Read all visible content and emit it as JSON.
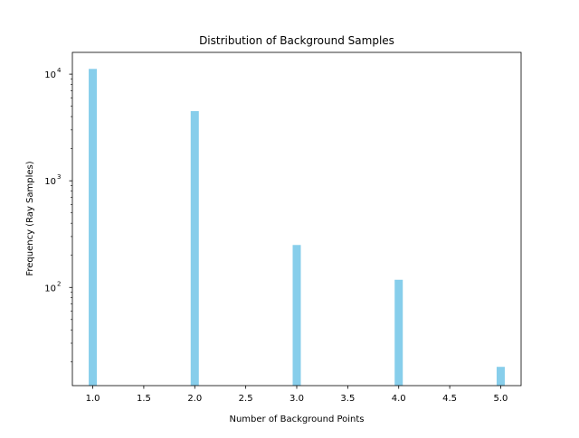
{
  "chart_data": {
    "type": "bar",
    "title": "Distribution of Background Samples",
    "xlabel": "Number of Background Points",
    "ylabel": "Frequency (Ray Samples)",
    "x": [
      1.0,
      2.0,
      3.0,
      4.0,
      5.0
    ],
    "values": [
      11200,
      4500,
      250,
      118,
      18
    ],
    "xlim": [
      0.8,
      5.2
    ],
    "ylim": [
      12,
      16000
    ],
    "yscale": "log",
    "xticks": [
      "1.0",
      "1.5",
      "2.0",
      "2.5",
      "3.0",
      "3.5",
      "4.0",
      "4.5",
      "5.0"
    ],
    "yticks": [
      {
        "value": 10000,
        "base": "10",
        "exp": "4"
      },
      {
        "value": 1000,
        "base": "10",
        "exp": "3"
      },
      {
        "value": 100,
        "base": "10",
        "exp": "2"
      }
    ],
    "grid": false,
    "colors": {
      "bar": "#87ceeb"
    }
  }
}
